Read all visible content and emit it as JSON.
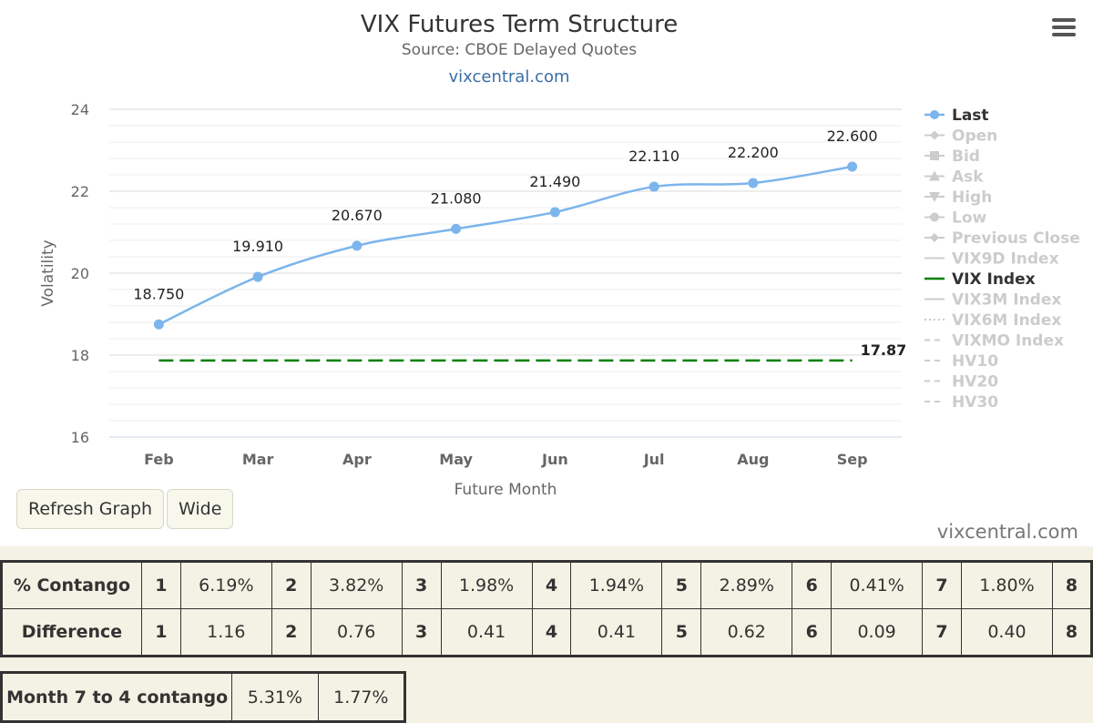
{
  "chart_data": {
    "type": "line",
    "title": "VIX Futures Term Structure",
    "subtitle": "Source: CBOE Delayed Quotes",
    "credit": "vixcentral.com",
    "xlabel": "Future Month",
    "ylabel": "Volatility",
    "categories": [
      "Feb",
      "Mar",
      "Apr",
      "May",
      "Jun",
      "Jul",
      "Aug",
      "Sep"
    ],
    "ylim": [
      16,
      24
    ],
    "yticks": [
      16,
      18,
      20,
      22,
      24
    ],
    "grid": true,
    "legend_position": "right",
    "series": [
      {
        "name": "Last",
        "values": [
          18.75,
          19.91,
          20.67,
          21.08,
          21.49,
          22.11,
          22.2,
          22.6
        ],
        "labels": [
          "18.750",
          "19.910",
          "20.670",
          "21.080",
          "21.490",
          "22.110",
          "22.200",
          "22.600"
        ],
        "color": "#7cb5ec",
        "style": "solid-markers"
      },
      {
        "name": "VIX Index",
        "values": [
          17.87,
          17.87,
          17.87,
          17.87,
          17.87,
          17.87,
          17.87,
          17.87
        ],
        "end_label": "17.87",
        "color": "#008000",
        "style": "dashed"
      }
    ],
    "legend": [
      {
        "name": "Last",
        "active": true,
        "symbol": "circle",
        "color": "#7cb5ec"
      },
      {
        "name": "Open",
        "active": false,
        "symbol": "diamond"
      },
      {
        "name": "Bid",
        "active": false,
        "symbol": "square"
      },
      {
        "name": "Ask",
        "active": false,
        "symbol": "triangle"
      },
      {
        "name": "High",
        "active": false,
        "symbol": "triangle-down"
      },
      {
        "name": "Low",
        "active": false,
        "symbol": "circle"
      },
      {
        "name": "Previous Close",
        "active": false,
        "symbol": "diamond"
      },
      {
        "name": "VIX9D Index",
        "active": false,
        "symbol": "line"
      },
      {
        "name": "VIX Index",
        "active": true,
        "symbol": "line",
        "color": "#008000"
      },
      {
        "name": "VIX3M Index",
        "active": false,
        "symbol": "line"
      },
      {
        "name": "VIX6M Index",
        "active": false,
        "symbol": "dotted"
      },
      {
        "name": "VIXMO Index",
        "active": false,
        "symbol": "dashed"
      },
      {
        "name": "HV10",
        "active": false,
        "symbol": "dashed"
      },
      {
        "name": "HV20",
        "active": false,
        "symbol": "dashed"
      },
      {
        "name": "HV30",
        "active": false,
        "symbol": "dashed"
      }
    ]
  },
  "buttons": {
    "refresh": "Refresh Graph",
    "wide": "Wide"
  },
  "watermark": "vixcentral.com",
  "contango_table": {
    "rows": [
      {
        "label": "% Contango",
        "cells": [
          [
            "1",
            "6.19%"
          ],
          [
            "2",
            "3.82%"
          ],
          [
            "3",
            "1.98%"
          ],
          [
            "4",
            "1.94%"
          ],
          [
            "5",
            "2.89%"
          ],
          [
            "6",
            "0.41%"
          ],
          [
            "7",
            "1.80%"
          ],
          [
            "8",
            ""
          ]
        ]
      },
      {
        "label": "Difference",
        "cells": [
          [
            "1",
            "1.16"
          ],
          [
            "2",
            "0.76"
          ],
          [
            "3",
            "0.41"
          ],
          [
            "4",
            "0.41"
          ],
          [
            "5",
            "0.62"
          ],
          [
            "6",
            "0.09"
          ],
          [
            "7",
            "0.40"
          ],
          [
            "8",
            ""
          ]
        ]
      }
    ]
  },
  "month_table": {
    "label": "Month 7 to 4 contango",
    "v1": "5.31%",
    "v2": "1.77%"
  }
}
